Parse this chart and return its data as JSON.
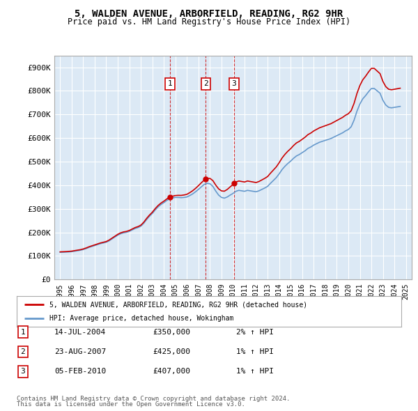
{
  "title1": "5, WALDEN AVENUE, ARBORFIELD, READING, RG2 9HR",
  "title2": "Price paid vs. HM Land Registry's House Price Index (HPI)",
  "background_color": "#dce9f5",
  "plot_bg_color": "#dce9f5",
  "outer_bg_color": "#ffffff",
  "ylim": [
    0,
    950000
  ],
  "yticks": [
    0,
    100000,
    200000,
    300000,
    400000,
    500000,
    600000,
    700000,
    800000,
    900000
  ],
  "ytick_labels": [
    "£0",
    "£100K",
    "£200K",
    "£300K",
    "£400K",
    "£500K",
    "£600K",
    "£700K",
    "£800K",
    "£900K"
  ],
  "xlim_start": 1994.5,
  "xlim_end": 2025.5,
  "xticks": [
    1995,
    1996,
    1997,
    1998,
    1999,
    2000,
    2001,
    2002,
    2003,
    2004,
    2005,
    2006,
    2007,
    2008,
    2009,
    2010,
    2011,
    2012,
    2013,
    2014,
    2015,
    2016,
    2017,
    2018,
    2019,
    2020,
    2021,
    2022,
    2023,
    2024,
    2025
  ],
  "transaction_dates": [
    2004.54,
    2007.64,
    2010.09
  ],
  "transaction_prices": [
    350000,
    425000,
    407000
  ],
  "transaction_labels": [
    "1",
    "2",
    "3"
  ],
  "transaction_date_strs": [
    "14-JUL-2004",
    "23-AUG-2007",
    "05-FEB-2010"
  ],
  "transaction_pct": [
    "2%",
    "1%",
    "1%"
  ],
  "red_line_color": "#cc0000",
  "blue_line_color": "#6699cc",
  "marker_color": "#cc0000",
  "legend_label_red": "5, WALDEN AVENUE, ARBORFIELD, READING, RG2 9HR (detached house)",
  "legend_label_blue": "HPI: Average price, detached house, Wokingham",
  "footer1": "Contains HM Land Registry data © Crown copyright and database right 2024.",
  "footer2": "This data is licensed under the Open Government Licence v3.0.",
  "hpi_years": [
    1995.0,
    1995.25,
    1995.5,
    1995.75,
    1996.0,
    1996.25,
    1996.5,
    1996.75,
    1997.0,
    1997.25,
    1997.5,
    1997.75,
    1998.0,
    1998.25,
    1998.5,
    1998.75,
    1999.0,
    1999.25,
    1999.5,
    1999.75,
    2000.0,
    2000.25,
    2000.5,
    2000.75,
    2001.0,
    2001.25,
    2001.5,
    2001.75,
    2002.0,
    2002.25,
    2002.5,
    2002.75,
    2003.0,
    2003.25,
    2003.5,
    2003.75,
    2004.0,
    2004.25,
    2004.5,
    2004.75,
    2005.0,
    2005.25,
    2005.5,
    2005.75,
    2006.0,
    2006.25,
    2006.5,
    2006.75,
    2007.0,
    2007.25,
    2007.5,
    2007.75,
    2008.0,
    2008.25,
    2008.5,
    2008.75,
    2009.0,
    2009.25,
    2009.5,
    2009.75,
    2010.0,
    2010.25,
    2010.5,
    2010.75,
    2011.0,
    2011.25,
    2011.5,
    2011.75,
    2012.0,
    2012.25,
    2012.5,
    2012.75,
    2013.0,
    2013.25,
    2013.5,
    2013.75,
    2014.0,
    2014.25,
    2014.5,
    2014.75,
    2015.0,
    2015.25,
    2015.5,
    2015.75,
    2016.0,
    2016.25,
    2016.5,
    2016.75,
    2017.0,
    2017.25,
    2017.5,
    2017.75,
    2018.0,
    2018.25,
    2018.5,
    2018.75,
    2019.0,
    2019.25,
    2019.5,
    2019.75,
    2020.0,
    2020.25,
    2020.5,
    2020.75,
    2021.0,
    2021.25,
    2021.5,
    2021.75,
    2022.0,
    2022.25,
    2022.5,
    2022.75,
    2023.0,
    2023.25,
    2023.5,
    2023.75,
    2024.0,
    2024.25,
    2024.5
  ],
  "hpi_values": [
    115000,
    115500,
    116000,
    117000,
    118000,
    120000,
    122000,
    124000,
    127000,
    131000,
    136000,
    140000,
    144000,
    148000,
    152000,
    155000,
    158000,
    164000,
    172000,
    180000,
    188000,
    194000,
    198000,
    200000,
    204000,
    210000,
    216000,
    220000,
    226000,
    238000,
    254000,
    268000,
    280000,
    295000,
    308000,
    318000,
    326000,
    335000,
    343000,
    346000,
    348000,
    348000,
    347000,
    348000,
    350000,
    356000,
    363000,
    372000,
    382000,
    393000,
    403000,
    408000,
    406000,
    395000,
    375000,
    358000,
    348000,
    345000,
    350000,
    358000,
    365000,
    374000,
    378000,
    376000,
    374000,
    378000,
    376000,
    374000,
    372000,
    376000,
    382000,
    388000,
    395000,
    408000,
    420000,
    432000,
    448000,
    466000,
    480000,
    492000,
    502000,
    514000,
    524000,
    530000,
    538000,
    546000,
    556000,
    562000,
    570000,
    576000,
    582000,
    586000,
    590000,
    594000,
    598000,
    604000,
    610000,
    616000,
    622000,
    630000,
    636000,
    648000,
    676000,
    714000,
    744000,
    766000,
    780000,
    796000,
    810000,
    810000,
    800000,
    790000,
    760000,
    740000,
    730000,
    728000,
    730000,
    732000,
    734000
  ]
}
